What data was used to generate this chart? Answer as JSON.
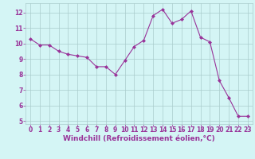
{
  "x": [
    0,
    1,
    2,
    3,
    4,
    5,
    6,
    7,
    8,
    9,
    10,
    11,
    12,
    13,
    14,
    15,
    16,
    17,
    18,
    19,
    20,
    21,
    22,
    23
  ],
  "y": [
    10.3,
    9.9,
    9.9,
    9.5,
    9.3,
    9.2,
    9.1,
    8.5,
    8.5,
    8.0,
    8.9,
    9.8,
    10.2,
    11.8,
    12.2,
    11.3,
    11.55,
    12.1,
    10.4,
    10.1,
    7.6,
    6.5,
    5.3,
    5.3
  ],
  "line_color": "#993399",
  "marker": "D",
  "marker_size": 2.0,
  "bg_color": "#d4f5f5",
  "grid_color": "#aacccc",
  "xlabel": "Windchill (Refroidissement éolien,°C)",
  "xlabel_color": "#993399",
  "ylim": [
    4.8,
    12.6
  ],
  "xlim": [
    -0.5,
    23.5
  ],
  "yticks": [
    5,
    6,
    7,
    8,
    9,
    10,
    11,
    12
  ],
  "xticks": [
    0,
    1,
    2,
    3,
    4,
    5,
    6,
    7,
    8,
    9,
    10,
    11,
    12,
    13,
    14,
    15,
    16,
    17,
    18,
    19,
    20,
    21,
    22,
    23
  ],
  "tick_color": "#993399",
  "tick_label_size": 5.5,
  "xlabel_size": 6.5,
  "line_width": 0.8
}
